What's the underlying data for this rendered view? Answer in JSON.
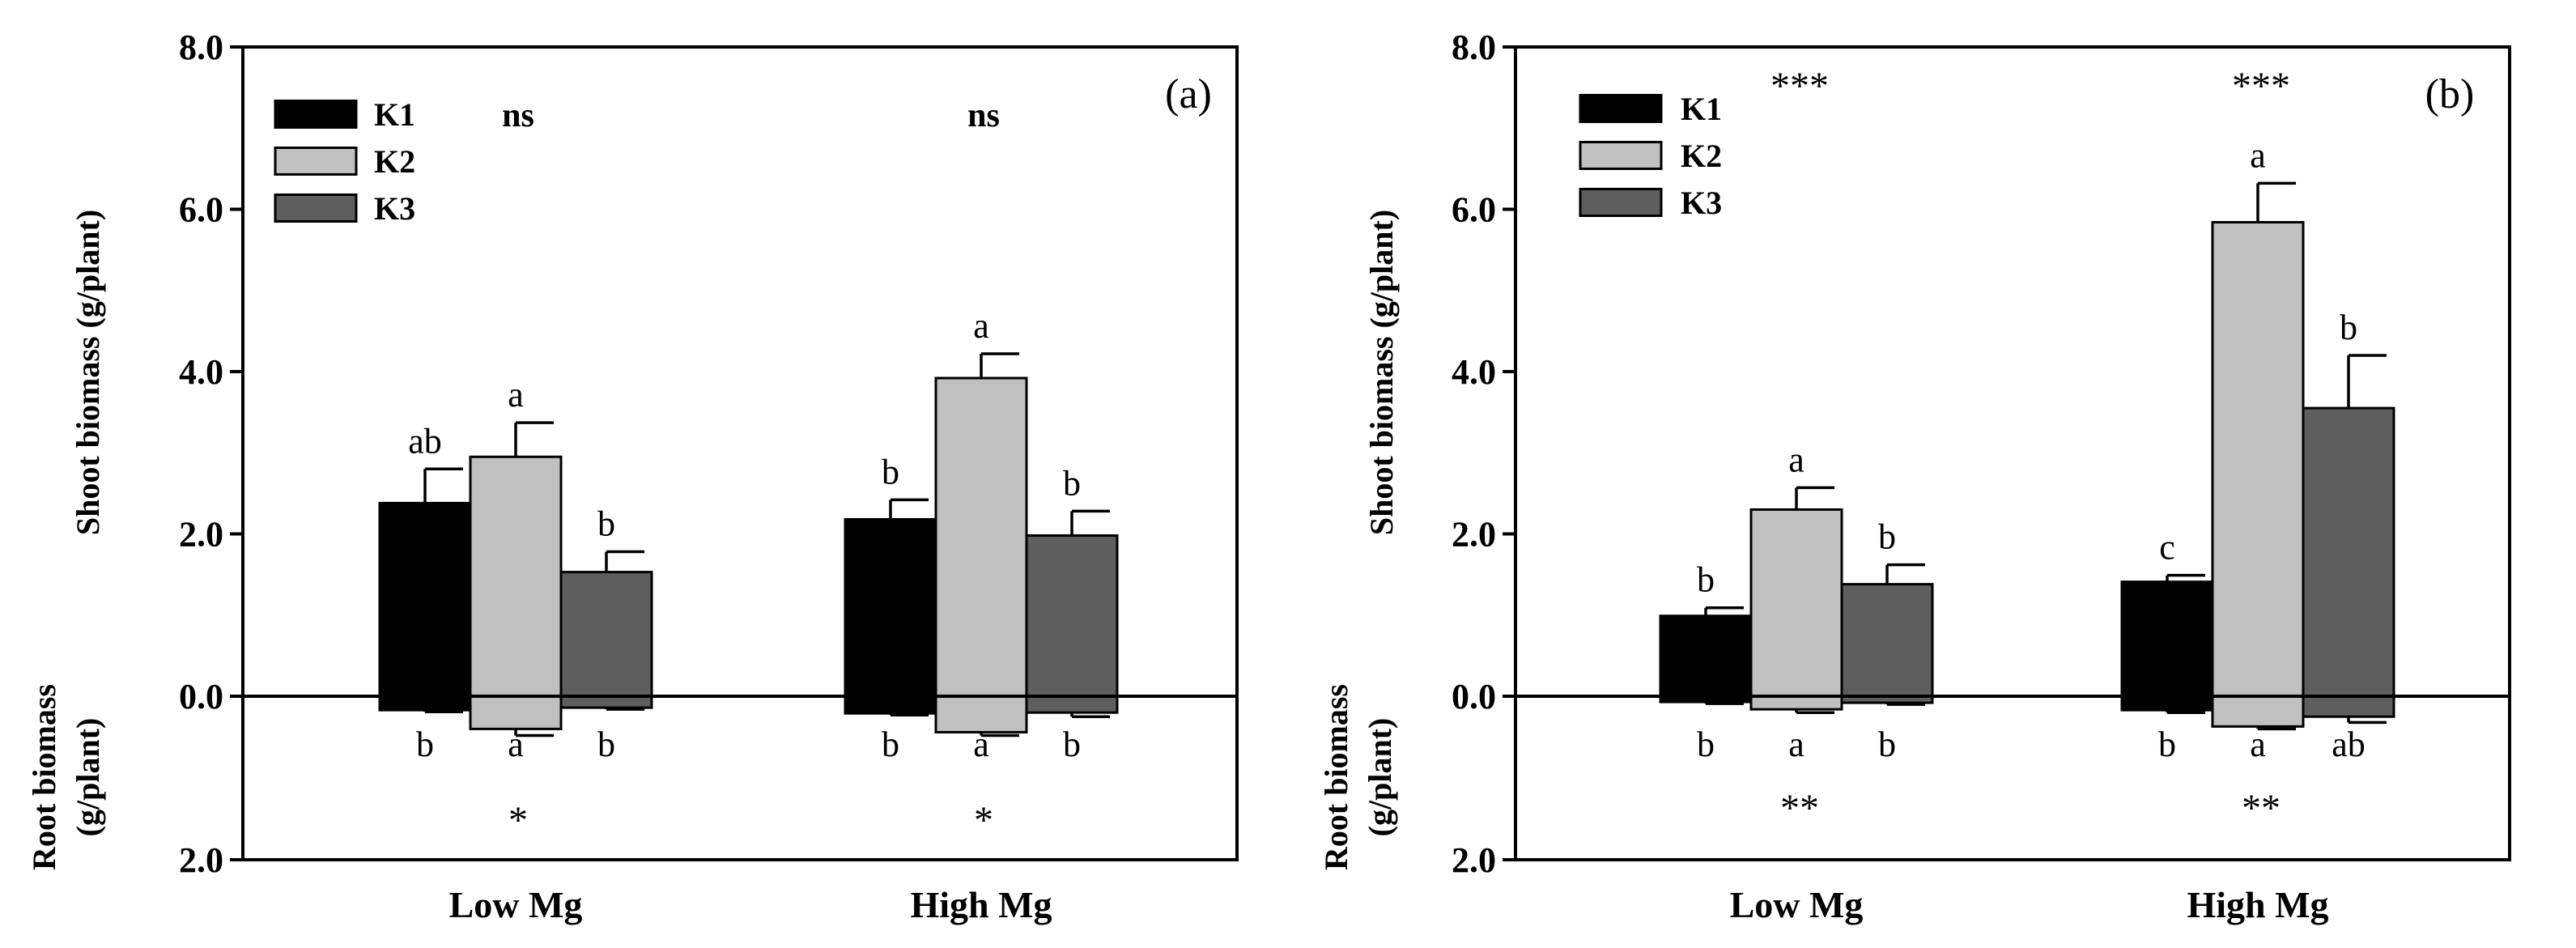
{
  "colors": {
    "K1": "#000000",
    "K2": "#c0c0c0",
    "K3": "#5e5e5e"
  },
  "chart_data": [
    {
      "type": "bar",
      "panel_label": "(a)",
      "categories": [
        "Low Mg",
        "High Mg"
      ],
      "series_names": [
        "K1",
        "K2",
        "K3"
      ],
      "ylabel_top": "Shoot biomass (g/plant)",
      "ylabel_bottom_lines": [
        "Root biomass",
        "(g/plant)"
      ],
      "ylim_top": [
        0,
        8
      ],
      "ylim_bottom": [
        0,
        2
      ],
      "yticks_top": [
        {
          "value": 8,
          "label": "8.0"
        },
        {
          "value": 6,
          "label": "6.0"
        },
        {
          "value": 4,
          "label": "4.0"
        },
        {
          "value": 2,
          "label": "2.0"
        },
        {
          "value": 0,
          "label": "0.0"
        }
      ],
      "yticks_bottom": [
        {
          "value": 2,
          "label": "2.0"
        }
      ],
      "shoot": {
        "values": [
          [
            2.38,
            2.95,
            1.53
          ],
          [
            2.18,
            3.92,
            1.98
          ]
        ],
        "errors": [
          [
            0.42,
            0.42,
            0.25
          ],
          [
            0.24,
            0.3,
            0.3
          ]
        ],
        "letters": [
          [
            "ab",
            "a",
            "b"
          ],
          [
            "b",
            "a",
            "b"
          ]
        ]
      },
      "root": {
        "values": [
          [
            0.17,
            0.4,
            0.14
          ],
          [
            0.21,
            0.44,
            0.2
          ]
        ],
        "errors": [
          [
            0.02,
            0.08,
            0.02
          ],
          [
            0.02,
            0.04,
            0.05
          ]
        ],
        "letters": [
          [
            "b",
            "a",
            "b"
          ],
          [
            "b",
            "a",
            "b"
          ]
        ]
      },
      "sig_shoot": [
        "ns",
        "ns"
      ],
      "sig_root": [
        "*",
        "*"
      ]
    },
    {
      "type": "bar",
      "panel_label": "(b)",
      "categories": [
        "Low Mg",
        "High Mg"
      ],
      "series_names": [
        "K1",
        "K2",
        "K3"
      ],
      "ylabel_top": "Shoot biomass (g/plant)",
      "ylabel_bottom_lines": [
        "Root biomass",
        "(g/plant)"
      ],
      "ylim_top": [
        0,
        8
      ],
      "ylim_bottom": [
        0,
        2
      ],
      "yticks_top": [
        {
          "value": 8,
          "label": "8.0"
        },
        {
          "value": 6,
          "label": "6.0"
        },
        {
          "value": 4,
          "label": "4.0"
        },
        {
          "value": 2,
          "label": "2.0"
        },
        {
          "value": 0,
          "label": "0.0"
        }
      ],
      "yticks_bottom": [
        {
          "value": 2,
          "label": "2.0"
        }
      ],
      "shoot": {
        "values": [
          [
            0.99,
            2.3,
            1.38
          ],
          [
            1.41,
            5.84,
            3.55
          ]
        ],
        "errors": [
          [
            0.1,
            0.27,
            0.24
          ],
          [
            0.08,
            0.48,
            0.65
          ]
        ],
        "letters": [
          [
            "b",
            "a",
            "b"
          ],
          [
            "c",
            "a",
            "b"
          ]
        ]
      },
      "root": {
        "values": [
          [
            0.07,
            0.16,
            0.08
          ],
          [
            0.17,
            0.37,
            0.25
          ]
        ],
        "errors": [
          [
            0.02,
            0.04,
            0.02
          ],
          [
            0.03,
            0.03,
            0.07
          ]
        ],
        "letters": [
          [
            "b",
            "a",
            "b"
          ],
          [
            "b",
            "a",
            "ab"
          ]
        ]
      },
      "sig_shoot": [
        "***",
        "***"
      ],
      "sig_root": [
        "**",
        "**"
      ]
    }
  ]
}
